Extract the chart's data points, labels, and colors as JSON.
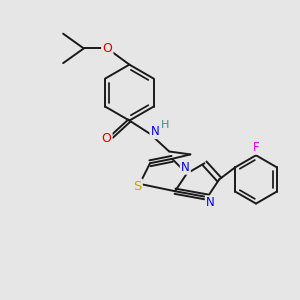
{
  "background_color": "#e6e6e6",
  "bond_color": "#1a1a1a",
  "bond_width": 1.4,
  "atom_colors": {
    "O": "#dd0000",
    "N": "#0000ee",
    "S": "#bbaa00",
    "F": "#ee00ee",
    "H": "#448899",
    "C": "#1a1a1a"
  },
  "font_size": 8.0
}
